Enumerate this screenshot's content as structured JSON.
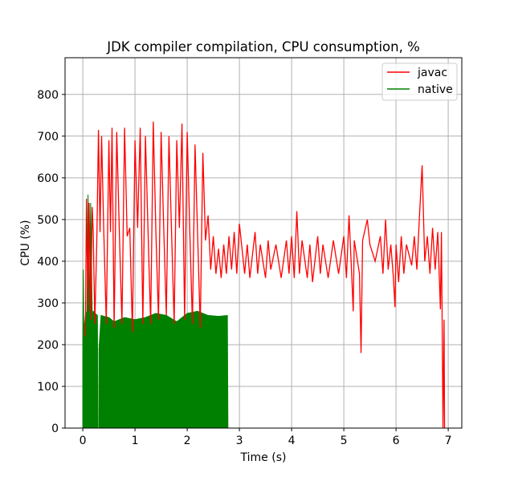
{
  "chart_data": {
    "type": "line",
    "title": "JDK compiler compilation, CPU consumption, %",
    "xlabel": "Time (s)",
    "ylabel": "CPU (%)",
    "xlim": [
      -0.34,
      7.26
    ],
    "ylim": [
      0,
      888
    ],
    "xticks": [
      0,
      1,
      2,
      3,
      4,
      5,
      6,
      7
    ],
    "yticks": [
      0,
      100,
      200,
      300,
      400,
      500,
      600,
      700,
      800
    ],
    "grid": true,
    "legend_placement": "top-right",
    "series": [
      {
        "name": "javac",
        "color": "#ff0000",
        "style": "line",
        "points": [
          [
            0.05,
            220
          ],
          [
            0.07,
            550
          ],
          [
            0.1,
            280
          ],
          [
            0.12,
            540
          ],
          [
            0.15,
            260
          ],
          [
            0.18,
            530
          ],
          [
            0.2,
            470
          ],
          [
            0.23,
            250
          ],
          [
            0.27,
            460
          ],
          [
            0.3,
            715
          ],
          [
            0.33,
            470
          ],
          [
            0.36,
            700
          ],
          [
            0.4,
            480
          ],
          [
            0.45,
            250
          ],
          [
            0.5,
            690
          ],
          [
            0.53,
            470
          ],
          [
            0.56,
            720
          ],
          [
            0.6,
            240
          ],
          [
            0.65,
            710
          ],
          [
            0.7,
            470
          ],
          [
            0.75,
            250
          ],
          [
            0.8,
            720
          ],
          [
            0.85,
            460
          ],
          [
            0.9,
            480
          ],
          [
            0.95,
            230
          ],
          [
            1.0,
            690
          ],
          [
            1.05,
            480
          ],
          [
            1.1,
            720
          ],
          [
            1.15,
            250
          ],
          [
            1.2,
            700
          ],
          [
            1.25,
            470
          ],
          [
            1.3,
            250
          ],
          [
            1.35,
            735
          ],
          [
            1.4,
            470
          ],
          [
            1.45,
            260
          ],
          [
            1.5,
            710
          ],
          [
            1.55,
            480
          ],
          [
            1.6,
            270
          ],
          [
            1.65,
            700
          ],
          [
            1.7,
            470
          ],
          [
            1.75,
            250
          ],
          [
            1.8,
            690
          ],
          [
            1.85,
            480
          ],
          [
            1.9,
            730
          ],
          [
            1.95,
            260
          ],
          [
            2.0,
            710
          ],
          [
            2.05,
            470
          ],
          [
            2.1,
            250
          ],
          [
            2.15,
            680
          ],
          [
            2.2,
            460
          ],
          [
            2.25,
            240
          ],
          [
            2.3,
            660
          ],
          [
            2.35,
            450
          ],
          [
            2.4,
            510
          ],
          [
            2.45,
            380
          ],
          [
            2.5,
            460
          ],
          [
            2.55,
            370
          ],
          [
            2.6,
            430
          ],
          [
            2.65,
            360
          ],
          [
            2.7,
            440
          ],
          [
            2.75,
            370
          ],
          [
            2.8,
            460
          ],
          [
            2.85,
            380
          ],
          [
            2.9,
            470
          ],
          [
            2.95,
            370
          ],
          [
            3.0,
            490
          ],
          [
            3.05,
            430
          ],
          [
            3.1,
            370
          ],
          [
            3.15,
            440
          ],
          [
            3.2,
            360
          ],
          [
            3.3,
            470
          ],
          [
            3.35,
            370
          ],
          [
            3.4,
            440
          ],
          [
            3.5,
            360
          ],
          [
            3.55,
            450
          ],
          [
            3.6,
            380
          ],
          [
            3.7,
            440
          ],
          [
            3.8,
            360
          ],
          [
            3.9,
            450
          ],
          [
            3.95,
            370
          ],
          [
            4.0,
            460
          ],
          [
            4.05,
            360
          ],
          [
            4.1,
            520
          ],
          [
            4.15,
            370
          ],
          [
            4.2,
            450
          ],
          [
            4.3,
            360
          ],
          [
            4.35,
            440
          ],
          [
            4.4,
            350
          ],
          [
            4.5,
            460
          ],
          [
            4.55,
            370
          ],
          [
            4.6,
            440
          ],
          [
            4.7,
            360
          ],
          [
            4.8,
            450
          ],
          [
            4.9,
            370
          ],
          [
            5.0,
            460
          ],
          [
            5.05,
            360
          ],
          [
            5.1,
            510
          ],
          [
            5.15,
            370
          ],
          [
            5.18,
            280
          ],
          [
            5.2,
            450
          ],
          [
            5.3,
            370
          ],
          [
            5.33,
            180
          ],
          [
            5.36,
            450
          ],
          [
            5.45,
            500
          ],
          [
            5.5,
            440
          ],
          [
            5.6,
            400
          ],
          [
            5.7,
            460
          ],
          [
            5.75,
            370
          ],
          [
            5.8,
            500
          ],
          [
            5.85,
            380
          ],
          [
            5.9,
            440
          ],
          [
            5.95,
            360
          ],
          [
            5.98,
            290
          ],
          [
            6.0,
            440
          ],
          [
            6.05,
            350
          ],
          [
            6.1,
            460
          ],
          [
            6.15,
            370
          ],
          [
            6.2,
            440
          ],
          [
            6.3,
            390
          ],
          [
            6.35,
            460
          ],
          [
            6.4,
            380
          ],
          [
            6.45,
            510
          ],
          [
            6.5,
            630
          ],
          [
            6.55,
            400
          ],
          [
            6.6,
            460
          ],
          [
            6.65,
            370
          ],
          [
            6.7,
            480
          ],
          [
            6.75,
            380
          ],
          [
            6.8,
            470
          ],
          [
            6.85,
            285
          ],
          [
            6.87,
            470
          ],
          [
            6.9,
            0
          ],
          [
            6.92,
            260
          ],
          [
            6.93,
            0
          ]
        ]
      },
      {
        "name": "native",
        "color": "#008000",
        "style": "dense-fill",
        "points": [
          [
            0.0,
            0
          ],
          [
            0.0,
            220
          ],
          [
            0.01,
            380
          ],
          [
            0.02,
            230
          ],
          [
            0.05,
            270
          ],
          [
            0.08,
            280
          ],
          [
            0.1,
            560
          ],
          [
            0.12,
            270
          ],
          [
            0.15,
            540
          ],
          [
            0.18,
            275
          ],
          [
            0.2,
            280
          ],
          [
            0.28,
            270
          ],
          [
            0.29,
            0
          ],
          [
            0.31,
            0
          ],
          [
            0.31,
            190
          ],
          [
            0.35,
            270
          ],
          [
            0.5,
            265
          ],
          [
            0.6,
            255
          ],
          [
            0.8,
            265
          ],
          [
            1.0,
            260
          ],
          [
            1.2,
            265
          ],
          [
            1.4,
            275
          ],
          [
            1.6,
            270
          ],
          [
            1.8,
            255
          ],
          [
            2.0,
            275
          ],
          [
            2.2,
            280
          ],
          [
            2.4,
            270
          ],
          [
            2.6,
            268
          ],
          [
            2.77,
            270
          ],
          [
            2.78,
            0
          ]
        ]
      }
    ]
  }
}
